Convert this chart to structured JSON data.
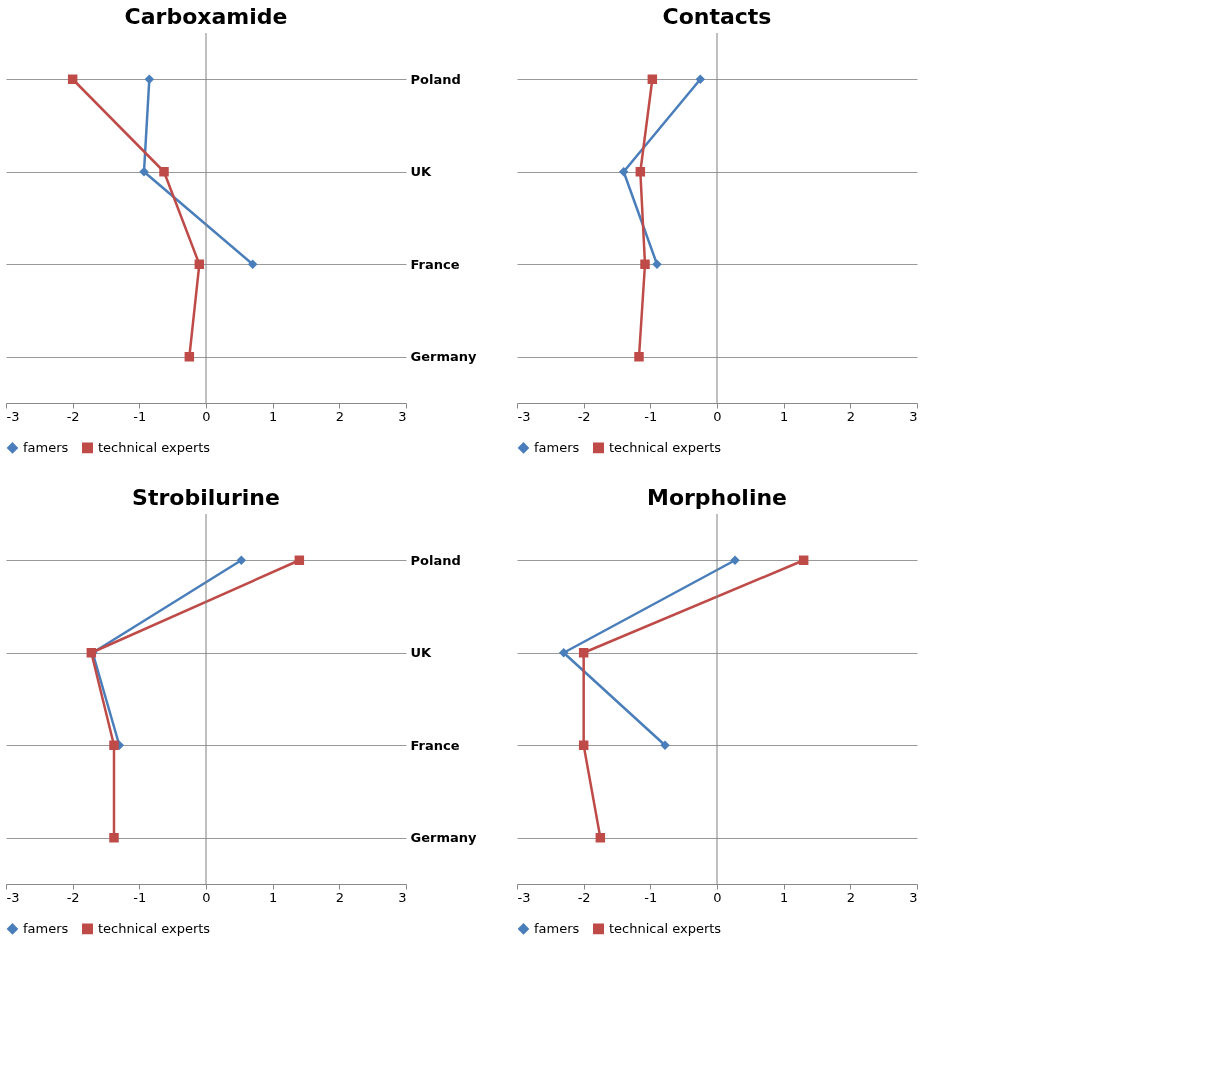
{
  "chart_data": [
    {
      "type": "line",
      "title": "Carboxamide",
      "categories": [
        "Poland",
        "UK",
        "France",
        "Germany"
      ],
      "orientation": "horizontal",
      "xlim": [
        -3,
        3
      ],
      "xticks": [
        -3,
        -2,
        -1,
        0,
        1,
        2,
        3
      ],
      "grid": "y",
      "legend": "bottom",
      "ref_lines": [
        {
          "axis": "x",
          "value": 0,
          "color": "#808080"
        }
      ],
      "series": [
        {
          "name": "famers",
          "color": "#4a7ebb",
          "marker": "diamond",
          "values": [
            -0.85,
            -0.93,
            0.7,
            null
          ]
        },
        {
          "name": "technical experts",
          "color": "#be4b48",
          "marker": "square",
          "values": [
            -2.0,
            -0.63,
            -0.1,
            -0.25
          ]
        }
      ]
    },
    {
      "type": "line",
      "title": "Contacts",
      "categories": [
        null,
        null,
        null,
        null
      ],
      "orientation": "horizontal",
      "xlim": [
        -3,
        3
      ],
      "xticks": [
        -3,
        -2,
        -1,
        0,
        1,
        2,
        3
      ],
      "grid": "y",
      "legend": "bottom",
      "ref_lines": [
        {
          "axis": "x",
          "value": 0,
          "color": "#808080"
        }
      ],
      "series": [
        {
          "name": "famers",
          "color": "#4a7ebb",
          "marker": "diamond",
          "values": [
            -0.25,
            -1.4,
            -0.9,
            null
          ]
        },
        {
          "name": "technical experts",
          "color": "#be4b48",
          "marker": "square",
          "values": [
            -0.97,
            -1.15,
            -1.08,
            -1.17
          ]
        }
      ]
    },
    {
      "type": "line",
      "title": "Strobilurine",
      "categories": [
        "Poland",
        "UK",
        "France",
        "Germany"
      ],
      "orientation": "horizontal",
      "xlim": [
        -3,
        3
      ],
      "xticks": [
        -3,
        -2,
        -1,
        0,
        1,
        2,
        3
      ],
      "grid": "y",
      "legend": "bottom",
      "ref_lines": [
        {
          "axis": "x",
          "value": 0,
          "color": "#808080"
        }
      ],
      "series": [
        {
          "name": "famers",
          "color": "#4a7ebb",
          "marker": "diamond",
          "values": [
            0.53,
            -1.7,
            -1.3,
            null
          ]
        },
        {
          "name": "technical experts",
          "color": "#be4b48",
          "marker": "square",
          "values": [
            1.4,
            -1.72,
            -1.38,
            -1.38
          ]
        }
      ]
    },
    {
      "type": "line",
      "title": "Morpholine",
      "categories": [
        null,
        null,
        null,
        null
      ],
      "orientation": "horizontal",
      "xlim": [
        -3,
        3
      ],
      "xticks": [
        -3,
        -2,
        -1,
        0,
        1,
        2,
        3
      ],
      "grid": "y",
      "legend": "bottom",
      "ref_lines": [
        {
          "axis": "x",
          "value": 0,
          "color": "#808080"
        }
      ],
      "series": [
        {
          "name": "famers",
          "color": "#4a7ebb",
          "marker": "diamond",
          "values": [
            0.27,
            -2.3,
            -0.78,
            null
          ]
        },
        {
          "name": "technical experts",
          "color": "#be4b48",
          "marker": "square",
          "values": [
            1.3,
            -2.0,
            -2.0,
            -1.75
          ]
        }
      ]
    }
  ]
}
